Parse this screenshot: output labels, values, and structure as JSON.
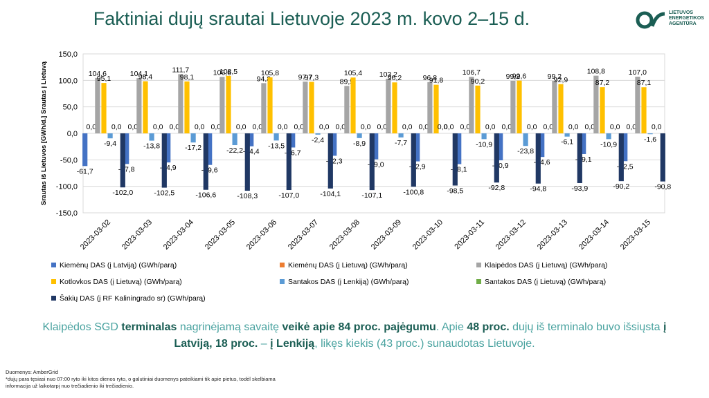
{
  "header": {
    "title": "Faktiniai dujų srautai Lietuvoje 2023 m. kovo 2–15 d.",
    "logo_lines": [
      "LIETUVOS",
      "ENERGETIKOS",
      "AGENTŪRA"
    ]
  },
  "chart_data": {
    "type": "bar",
    "ylabel": "Srautas iš Lietuvos [GWh/d.] Srautas į Lietuvą",
    "ylim": [
      -150,
      150
    ],
    "yticks": [
      "150,0",
      "100,0",
      "50,0",
      "0,0",
      "-50,0",
      "-100,0",
      "-150,0"
    ],
    "ytick_values": [
      150,
      100,
      50,
      0,
      -50,
      -100,
      -150
    ],
    "grid": true,
    "legend_position": "bottom",
    "categories": [
      "2023-03-02",
      "2023-03-03",
      "2023-03-04",
      "2023-03-05",
      "2023-03-06",
      "2023-03-07",
      "2023-03-08",
      "2023-03-09",
      "2023-03-10",
      "2023-03-11",
      "2023-03-12",
      "2023-03-13",
      "2023-03-14",
      "2023-03-15"
    ],
    "series": [
      {
        "name": "Kiemėnų DAS (į Latviją) (GWh/parą)",
        "color": "#4472c4",
        "values": [
          -61.7,
          -57.8,
          -54.9,
          -59.6,
          -24.4,
          -26.7,
          -42.3,
          -49.0,
          -52.9,
          -58.1,
          -50.9,
          -44.6,
          -39.1,
          -52.5
        ],
        "labels": [
          "-61,7",
          "-57,8",
          "-54,9",
          "-59,6",
          "-24,4",
          "-26,7",
          "-42,3",
          "-49,0",
          "-52,9",
          "-58,1",
          "-50,9",
          "-44,6",
          "-39,1",
          "-52,5"
        ]
      },
      {
        "name": "Kiemėnų DAS (į Lietuvą) (GWh/parą)",
        "color": "#ed7d31",
        "values": [
          0,
          0,
          0,
          0,
          0,
          0,
          0,
          0,
          0,
          0,
          0,
          0,
          0,
          0
        ],
        "labels": [
          "0,0",
          "0,0",
          "0,0",
          "0,0",
          "0,0",
          "0,0",
          "0,0",
          "0,0",
          "0,0",
          "0,0",
          "0,0",
          "0,0",
          "0,0",
          "0,0"
        ]
      },
      {
        "name": "Klaipėdos DAS (į Lietuvą) (GWh/parą)",
        "color": "#a5a5a5",
        "values": [
          104.6,
          104.1,
          111.7,
          106.6,
          94.8,
          97.7,
          89.5,
          103.2,
          96.8,
          106.7,
          99.2,
          99.2,
          108.8,
          107.0
        ],
        "labels": [
          "104,6",
          "104,1",
          "111,7",
          "106,6",
          "94,8",
          "97,7",
          "89,5",
          "103,2",
          "96,8",
          "106,7",
          "99,2",
          "99,2",
          "108,8",
          "107,0"
        ]
      },
      {
        "name": "Kotlovkos DAS (į Lietuvą) (GWh/parą)",
        "color": "#ffc000",
        "values": [
          95.1,
          98.4,
          98.1,
          108.5,
          105.8,
          97.3,
          105.4,
          96.2,
          91.8,
          90.2,
          99.6,
          92.9,
          87.2,
          87.1
        ],
        "labels": [
          "95,1",
          "98,4",
          "98,1",
          "108,5",
          "105,8",
          "97,3",
          "105,4",
          "96,2",
          "91,8",
          "90,2",
          "99,6",
          "92,9",
          "87,2",
          "87,1"
        ]
      },
      {
        "name": "Santakos DAS (į Lenkiją) (GWh/parą)",
        "color": "#5b9bd5",
        "values": [
          -9.4,
          -13.8,
          -17.2,
          -22.2,
          -13.5,
          -2.4,
          -8.9,
          -7.7,
          0,
          -10.9,
          -23.8,
          -6.1,
          -10.9,
          -1.6
        ],
        "labels": [
          "-9,4",
          "-13,8",
          "-17,2",
          "-22,2",
          "-13,5",
          "-2,4",
          "-8,9",
          "-7,7",
          "0,0",
          "-10,9",
          "-23,8",
          "-6,1",
          "-10,9",
          "-1,6"
        ]
      },
      {
        "name": "Santakos DAS (į Lietuvą) (GWh/parą)",
        "color": "#70ad47",
        "values": [
          0,
          0,
          0,
          0,
          0,
          0,
          0,
          0,
          0,
          0,
          0,
          0,
          0,
          0
        ],
        "labels": [
          "0,0",
          "0,0",
          "0,0",
          "0,0",
          "0,0",
          "0,0",
          "0,0",
          "0,0",
          "0,0",
          "0,0",
          "0,0",
          "0,0",
          "0,0",
          "0,0"
        ]
      },
      {
        "name": "Šakių DAS (į RF Kaliningrado sr) (GWh/parą)",
        "color": "#203864",
        "values": [
          -102.0,
          -102.5,
          -106.6,
          -108.3,
          -107.0,
          -104.1,
          -107.1,
          -100.8,
          -98.5,
          -92.8,
          -94.8,
          -93.9,
          -90.2,
          -90.8
        ],
        "labels": [
          "-102,0",
          "-102,5",
          "-106,6",
          "-108,3",
          "-107,0",
          "-104,1",
          "-107,1",
          "-100,8",
          "-98,5",
          "-92,8",
          "-94,8",
          "-93,9",
          "-90,2",
          "-90,8"
        ]
      }
    ]
  },
  "summary": {
    "t1": "Klaipėdos SGD ",
    "b1": "terminalas",
    "t2": " nagrinėjamą savaitę ",
    "b2": "veikė apie 84 proc. pajėgumu",
    "t3": ". Apie ",
    "b3": "48 proc.",
    "t4": " dujų iš terminalo buvo išsiųsta ",
    "b4": "į Latviją, 18 proc.",
    "t5": " – ",
    "b5": "į Lenkiją",
    "t6": ", likęs kiekis (43 proc.) sunaudotas Lietuvoje."
  },
  "footer": {
    "line1": "Duomenys: AmberGrid",
    "line2": "*dujų para tęsiasi nuo 07:00 ryto iki kitos dienos ryto, o galutiniai duomenys pateikiami tik apie pietus, todėl skelbiama",
    "line3": "informacija už laikotarpį nuo trečiadienio iki trečiadienio."
  }
}
